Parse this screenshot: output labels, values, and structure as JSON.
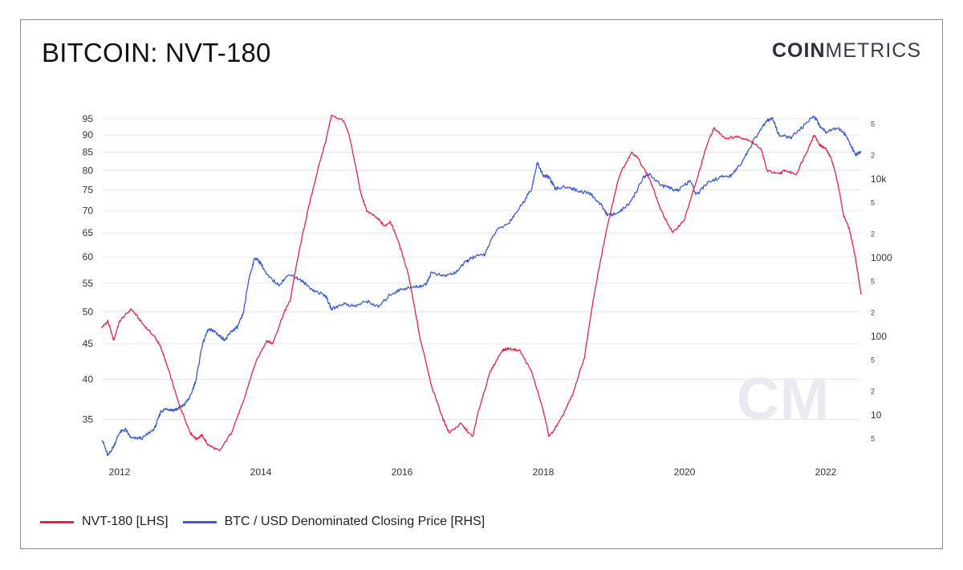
{
  "header": {
    "title": "BITCOIN: NVT-180",
    "logo_bold": "COIN",
    "logo_light": "METRICS"
  },
  "watermark": "CM",
  "colors": {
    "nvt": "#e0234e",
    "btc": "#3b5bd1",
    "grid": "#e6e6e6"
  },
  "chart_data": {
    "type": "line",
    "title": "BITCOIN: NVT-180",
    "x_ticks": [
      "2012",
      "2014",
      "2016",
      "2018",
      "2020",
      "2022"
    ],
    "xlim": [
      "2011-10",
      "2022-07"
    ],
    "left_axis": {
      "scale": "log",
      "ticks": [
        "35",
        "40",
        "45",
        "50",
        "55",
        "60",
        "65",
        "70",
        "75",
        "80",
        "85",
        "90",
        "95"
      ],
      "ylim": [
        31,
        97
      ]
    },
    "right_axis": {
      "scale": "log",
      "ylim": [
        3,
        70000
      ],
      "major_ticks": [
        {
          "v": 10,
          "label": "10"
        },
        {
          "v": 100,
          "label": "100"
        },
        {
          "v": 1000,
          "label": "1000"
        },
        {
          "v": 10000,
          "label": "10k"
        }
      ],
      "minor_ticks": [
        {
          "v": 5,
          "label": "5"
        },
        {
          "v": 20,
          "label": "2"
        },
        {
          "v": 50,
          "label": "5"
        },
        {
          "v": 200,
          "label": "2"
        },
        {
          "v": 500,
          "label": "5"
        },
        {
          "v": 2000,
          "label": "2"
        },
        {
          "v": 5000,
          "label": "5"
        },
        {
          "v": 20000,
          "label": "2"
        },
        {
          "v": 50000,
          "label": "5"
        }
      ]
    },
    "grid": true,
    "legend_position": "bottom-left",
    "series": [
      {
        "name": "NVT-180 [LHS]",
        "axis": "left",
        "points": [
          [
            "2011-10",
            47.5
          ],
          [
            "2011-11",
            48.5
          ],
          [
            "2011-12",
            45.5
          ],
          [
            "2012-01",
            48.5
          ],
          [
            "2012-03",
            50.5
          ],
          [
            "2012-05",
            48.0
          ],
          [
            "2012-07",
            46.0
          ],
          [
            "2012-08",
            44.5
          ],
          [
            "2012-09",
            42.0
          ],
          [
            "2012-11",
            37.0
          ],
          [
            "2013-01",
            33.5
          ],
          [
            "2013-02",
            32.8
          ],
          [
            "2013-03",
            33.2
          ],
          [
            "2013-04",
            32.2
          ],
          [
            "2013-06",
            31.5
          ],
          [
            "2013-08",
            33.5
          ],
          [
            "2013-10",
            37.0
          ],
          [
            "2013-12",
            42.0
          ],
          [
            "2014-02",
            45.5
          ],
          [
            "2014-03",
            45.0
          ],
          [
            "2014-05",
            50.0
          ],
          [
            "2014-06",
            52.0
          ],
          [
            "2014-08",
            64.0
          ],
          [
            "2014-10",
            76.0
          ],
          [
            "2014-12",
            88.0
          ],
          [
            "2015-01",
            96.0
          ],
          [
            "2015-03",
            94.5
          ],
          [
            "2015-04",
            90.0
          ],
          [
            "2015-05",
            82.0
          ],
          [
            "2015-06",
            74.0
          ],
          [
            "2015-07",
            70.0
          ],
          [
            "2015-09",
            68.0
          ],
          [
            "2015-10",
            66.5
          ],
          [
            "2015-11",
            67.5
          ],
          [
            "2015-12",
            64.5
          ],
          [
            "2016-02",
            57.0
          ],
          [
            "2016-04",
            46.0
          ],
          [
            "2016-06",
            39.0
          ],
          [
            "2016-08",
            35.0
          ],
          [
            "2016-09",
            33.5
          ],
          [
            "2016-11",
            34.5
          ],
          [
            "2017-01",
            33.0
          ],
          [
            "2017-02",
            36.0
          ],
          [
            "2017-04",
            41.0
          ],
          [
            "2017-06",
            44.0
          ],
          [
            "2017-07",
            44.3
          ],
          [
            "2017-09",
            44.0
          ],
          [
            "2017-11",
            41.0
          ],
          [
            "2018-01",
            36.0
          ],
          [
            "2018-02",
            33.0
          ],
          [
            "2018-04",
            35.0
          ],
          [
            "2018-06",
            38.0
          ],
          [
            "2018-08",
            43.0
          ],
          [
            "2018-10",
            55.0
          ],
          [
            "2018-12",
            67.0
          ],
          [
            "2019-02",
            79.0
          ],
          [
            "2019-04",
            85.0
          ],
          [
            "2019-05",
            83.5
          ],
          [
            "2019-07",
            78.0
          ],
          [
            "2019-09",
            70.0
          ],
          [
            "2019-11",
            65.0
          ],
          [
            "2020-01",
            68.0
          ],
          [
            "2020-03",
            77.0
          ],
          [
            "2020-05",
            88.0
          ],
          [
            "2020-06",
            92.0
          ],
          [
            "2020-08",
            89.0
          ],
          [
            "2020-10",
            89.5
          ],
          [
            "2020-12",
            88.5
          ],
          [
            "2021-02",
            86.0
          ],
          [
            "2021-03",
            80.0
          ],
          [
            "2021-05",
            79.0
          ],
          [
            "2021-06",
            80.0
          ],
          [
            "2021-08",
            79.0
          ],
          [
            "2021-10",
            86.0
          ],
          [
            "2021-11",
            90.0
          ],
          [
            "2021-12",
            87.0
          ],
          [
            "2022-01",
            86.0
          ],
          [
            "2022-02",
            83.0
          ],
          [
            "2022-03",
            77.0
          ],
          [
            "2022-04",
            69.0
          ],
          [
            "2022-05",
            66.0
          ],
          [
            "2022-06",
            60.0
          ],
          [
            "2022-07",
            53.0
          ]
        ]
      },
      {
        "name": "BTC / USD Denominated Closing Price [RHS]",
        "axis": "right",
        "points": [
          [
            "2011-10",
            5
          ],
          [
            "2011-11",
            3
          ],
          [
            "2011-12",
            4
          ],
          [
            "2012-01",
            6
          ],
          [
            "2012-02",
            6.5
          ],
          [
            "2012-03",
            5
          ],
          [
            "2012-05",
            5.1
          ],
          [
            "2012-07",
            6.8
          ],
          [
            "2012-08",
            11
          ],
          [
            "2012-09",
            12
          ],
          [
            "2012-10",
            11.5
          ],
          [
            "2012-11",
            12
          ],
          [
            "2012-12",
            13.5
          ],
          [
            "2013-01",
            17
          ],
          [
            "2013-02",
            28
          ],
          [
            "2013-03",
            75
          ],
          [
            "2013-04",
            120
          ],
          [
            "2013-05",
            118
          ],
          [
            "2013-06",
            100
          ],
          [
            "2013-07",
            90
          ],
          [
            "2013-08",
            115
          ],
          [
            "2013-09",
            130
          ],
          [
            "2013-10",
            190
          ],
          [
            "2013-11",
            550
          ],
          [
            "2013-12",
            1000
          ],
          [
            "2014-01",
            850
          ],
          [
            "2014-02",
            600
          ],
          [
            "2014-04",
            450
          ],
          [
            "2014-06",
            620
          ],
          [
            "2014-08",
            500
          ],
          [
            "2014-10",
            380
          ],
          [
            "2014-12",
            330
          ],
          [
            "2015-01",
            220
          ],
          [
            "2015-03",
            260
          ],
          [
            "2015-05",
            240
          ],
          [
            "2015-07",
            280
          ],
          [
            "2015-09",
            235
          ],
          [
            "2015-11",
            340
          ],
          [
            "2016-01",
            400
          ],
          [
            "2016-03",
            420
          ],
          [
            "2016-05",
            450
          ],
          [
            "2016-06",
            650
          ],
          [
            "2016-08",
            580
          ],
          [
            "2016-10",
            640
          ],
          [
            "2016-12",
            900
          ],
          [
            "2017-01",
            1000
          ],
          [
            "2017-03",
            1100
          ],
          [
            "2017-05",
            2200
          ],
          [
            "2017-07",
            2700
          ],
          [
            "2017-09",
            4300
          ],
          [
            "2017-11",
            7500
          ],
          [
            "2017-12",
            16000
          ],
          [
            "2018-01",
            11000
          ],
          [
            "2018-02",
            10500
          ],
          [
            "2018-03",
            7500
          ],
          [
            "2018-05",
            8000
          ],
          [
            "2018-07",
            7000
          ],
          [
            "2018-09",
            6500
          ],
          [
            "2018-11",
            4500
          ],
          [
            "2018-12",
            3400
          ],
          [
            "2019-02",
            3800
          ],
          [
            "2019-04",
            5200
          ],
          [
            "2019-06",
            10500
          ],
          [
            "2019-07",
            11500
          ],
          [
            "2019-09",
            8300
          ],
          [
            "2019-11",
            7400
          ],
          [
            "2019-12",
            7200
          ],
          [
            "2020-02",
            9500
          ],
          [
            "2020-03",
            6200
          ],
          [
            "2020-05",
            9000
          ],
          [
            "2020-07",
            10500
          ],
          [
            "2020-09",
            11000
          ],
          [
            "2020-11",
            17500
          ],
          [
            "2021-01",
            33000
          ],
          [
            "2021-03",
            55000
          ],
          [
            "2021-04",
            58000
          ],
          [
            "2021-05",
            37000
          ],
          [
            "2021-07",
            33000
          ],
          [
            "2021-09",
            45000
          ],
          [
            "2021-11",
            64000
          ],
          [
            "2021-12",
            47000
          ],
          [
            "2022-01",
            40000
          ],
          [
            "2022-03",
            45000
          ],
          [
            "2022-04",
            39000
          ],
          [
            "2022-05",
            30000
          ],
          [
            "2022-06",
            20000
          ],
          [
            "2022-07",
            22000
          ]
        ]
      }
    ]
  }
}
